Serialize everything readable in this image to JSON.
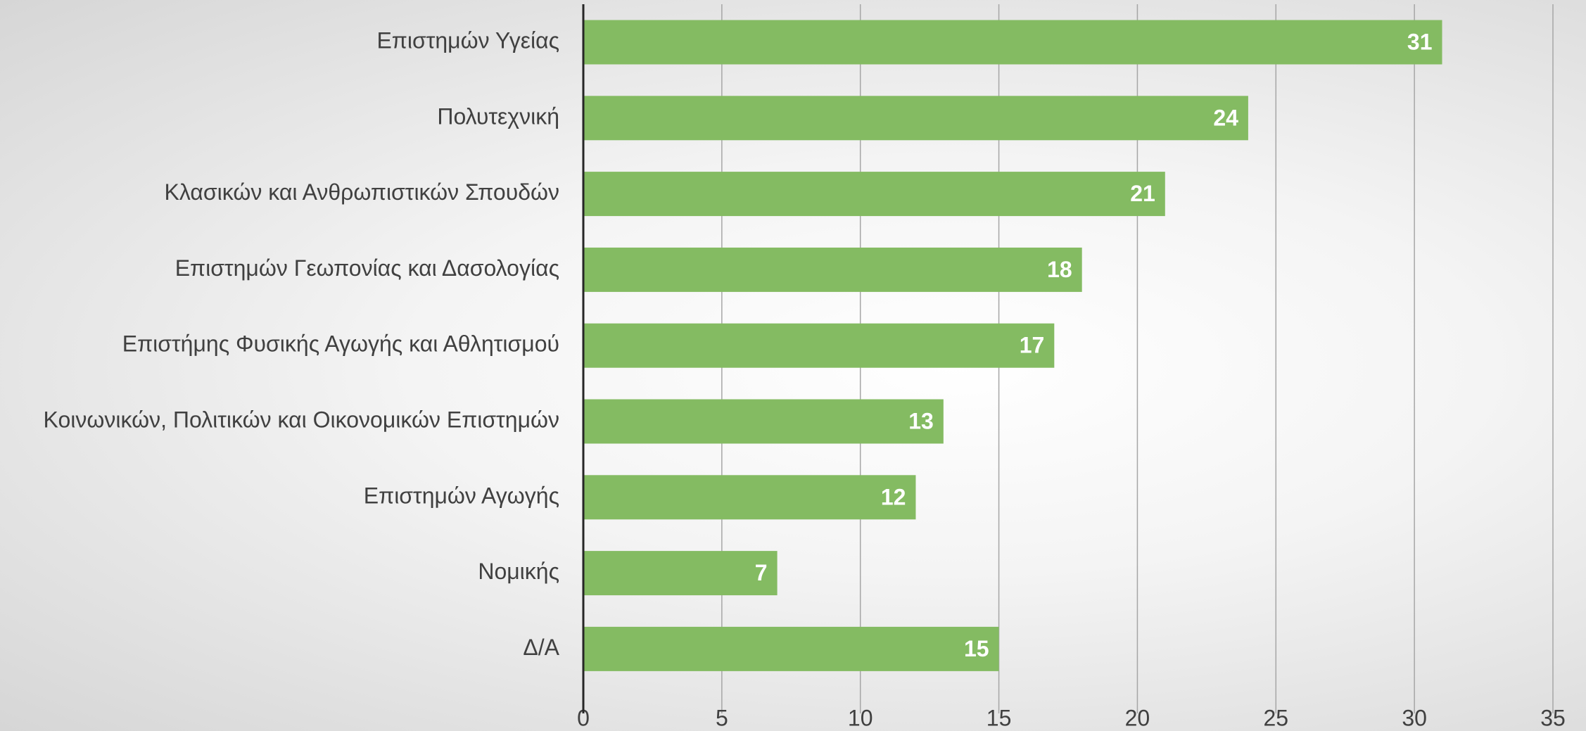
{
  "chart_data": {
    "type": "barh",
    "categories": [
      "Επιστημών Υγείας",
      "Πολυτεχνική",
      "Κλασικών και Ανθρωπιστικών Σπουδών",
      "Επιστημών Γεωπονίας και Δασολογίας",
      "Επιστήμης Φυσικής Αγωγής και Αθλητισμού",
      "Κοινωνικών, Πολιτικών και Οικονομικών Επιστημών",
      "Επιστημών Αγωγής",
      "Νομικής",
      "Δ/Α"
    ],
    "values": [
      31,
      24,
      21,
      18,
      17,
      13,
      12,
      7,
      15
    ],
    "color": "#84bb62",
    "xlim": [
      0,
      35
    ],
    "xticks": [
      0,
      5,
      10,
      15,
      20,
      25,
      30,
      35
    ],
    "grid": true
  }
}
